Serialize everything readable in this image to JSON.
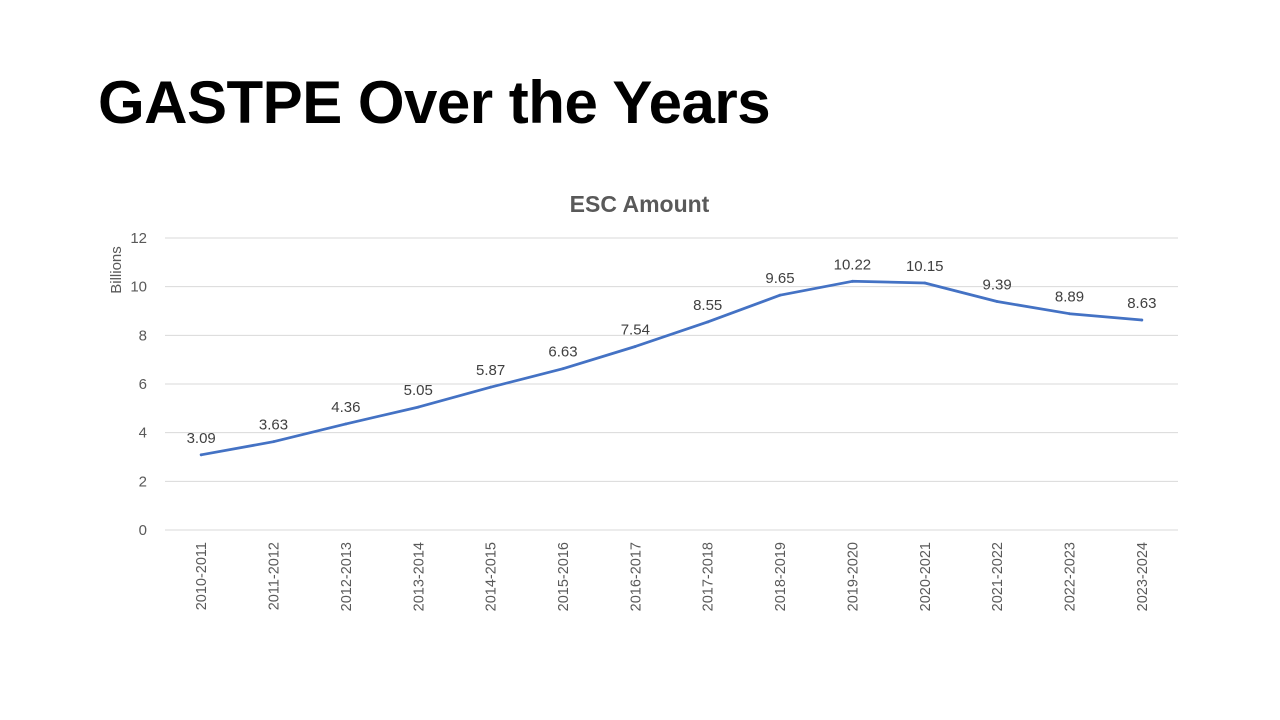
{
  "slide": {
    "title": "GASTPE Over the Years"
  },
  "colors": {
    "series_line": "#4472c4",
    "gridline": "#d9d9d9",
    "axis_text": "#595959",
    "label_text": "#404040"
  },
  "chart_data": {
    "type": "line",
    "title": "ESC Amount",
    "xlabel": "",
    "ylabel": "Billions",
    "categories": [
      "2010-2011",
      "2011-2012",
      "2012-2013",
      "2013-2014",
      "2014-2015",
      "2015-2016",
      "2016-2017",
      "2017-2018",
      "2018-2019",
      "2019-2020",
      "2020-2021",
      "2021-2022",
      "2022-2023",
      "2023-2024"
    ],
    "values": [
      3.09,
      3.63,
      4.36,
      5.05,
      5.87,
      6.63,
      7.54,
      8.55,
      9.65,
      10.22,
      10.15,
      9.39,
      8.89,
      8.63
    ],
    "data_labels": [
      "3.09",
      "3.63",
      "4.36",
      "5.05",
      "5.87",
      "6.63",
      "7.54",
      "8.55",
      "9.65",
      "10.22",
      "10.15",
      "9.39",
      "8.89",
      "8.63"
    ],
    "ylim": [
      0,
      12
    ],
    "yticks": [
      0,
      2,
      4,
      6,
      8,
      10,
      12
    ],
    "ytick_labels": [
      "0",
      "2",
      "4",
      "6",
      "8",
      "10",
      "12"
    ],
    "grid": true,
    "legend": "none"
  }
}
